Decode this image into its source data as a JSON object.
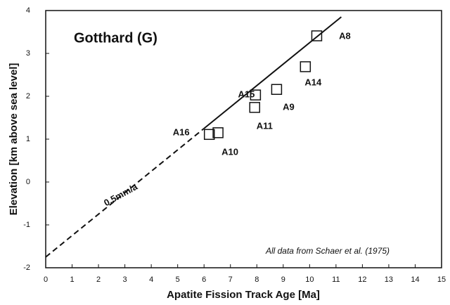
{
  "chart_data": {
    "type": "scatter",
    "title": "Gotthard (G)",
    "xlabel": "Apatite Fission Track Age [Ma]",
    "ylabel": "Elevation [km above sea level]",
    "annotations": [
      "0.5mm/a",
      "All data from Schaer et al. (1975)"
    ],
    "xlim": [
      0,
      15
    ],
    "ylim": [
      -2,
      4
    ],
    "xticks": [
      0,
      1,
      2,
      3,
      4,
      5,
      6,
      7,
      8,
      9,
      10,
      11,
      12,
      13,
      14,
      15
    ],
    "yticks": [
      -2,
      -1,
      0,
      1,
      2,
      3,
      4
    ],
    "series": [
      {
        "labels": [
          "A8",
          "A14",
          "A9",
          "A15",
          "A11",
          "A16",
          "A10"
        ],
        "x": [
          10.27,
          9.84,
          8.75,
          7.95,
          7.92,
          6.2,
          6.53
        ],
        "y": [
          3.41,
          2.69,
          2.16,
          2.03,
          1.74,
          1.11,
          1.15
        ]
      }
    ],
    "lines": [
      {
        "x": [
          0,
          6
        ],
        "y": [
          -1.75,
          1.25
        ],
        "dashed": true
      },
      {
        "x": [
          6,
          11.2
        ],
        "y": [
          1.25,
          3.85
        ],
        "dashed": false
      }
    ]
  }
}
